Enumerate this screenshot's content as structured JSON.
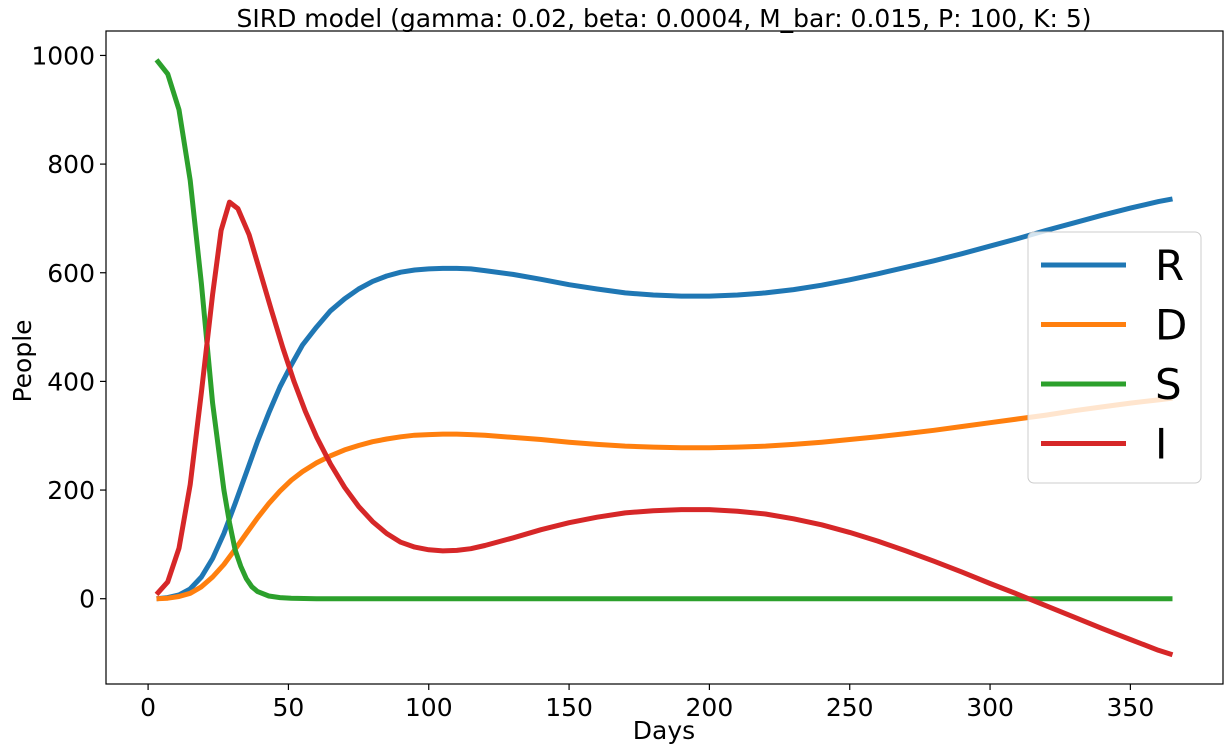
{
  "chart_data": {
    "type": "line",
    "title": "SIRD model (gamma: 0.02, beta: 0.0004, M_bar: 0.015, P: 100, K: 5)",
    "xlabel": "Days",
    "ylabel": "People",
    "xlim": [
      -15,
      383
    ],
    "ylim": [
      -157,
      1045
    ],
    "xticks": [
      0,
      50,
      100,
      150,
      200,
      250,
      300,
      350
    ],
    "yticks": [
      0,
      200,
      400,
      600,
      800,
      1000
    ],
    "grid": false,
    "legend_position": "center-right",
    "series": [
      {
        "name": "R",
        "color": "#1f77b4",
        "points": [
          [
            3,
            0
          ],
          [
            7,
            2
          ],
          [
            11,
            7
          ],
          [
            15,
            18
          ],
          [
            19,
            40
          ],
          [
            23,
            74
          ],
          [
            27,
            120
          ],
          [
            31,
            175
          ],
          [
            35,
            232
          ],
          [
            39,
            290
          ],
          [
            43,
            342
          ],
          [
            47,
            390
          ],
          [
            51,
            430
          ],
          [
            55,
            467
          ],
          [
            60,
            500
          ],
          [
            65,
            530
          ],
          [
            70,
            552
          ],
          [
            75,
            570
          ],
          [
            80,
            584
          ],
          [
            85,
            594
          ],
          [
            90,
            601
          ],
          [
            95,
            605
          ],
          [
            100,
            607
          ],
          [
            105,
            608
          ],
          [
            110,
            608
          ],
          [
            115,
            607
          ],
          [
            120,
            604
          ],
          [
            130,
            597
          ],
          [
            140,
            588
          ],
          [
            150,
            578
          ],
          [
            160,
            570
          ],
          [
            170,
            563
          ],
          [
            180,
            559
          ],
          [
            190,
            557
          ],
          [
            200,
            557
          ],
          [
            210,
            559
          ],
          [
            220,
            563
          ],
          [
            230,
            569
          ],
          [
            240,
            577
          ],
          [
            250,
            587
          ],
          [
            260,
            598
          ],
          [
            270,
            610
          ],
          [
            280,
            622
          ],
          [
            290,
            635
          ],
          [
            300,
            649
          ],
          [
            310,
            663
          ],
          [
            320,
            678
          ],
          [
            330,
            692
          ],
          [
            340,
            706
          ],
          [
            350,
            719
          ],
          [
            360,
            731
          ],
          [
            365,
            736
          ]
        ]
      },
      {
        "name": "D",
        "color": "#ff7f0e",
        "points": [
          [
            3,
            0
          ],
          [
            7,
            1
          ],
          [
            11,
            4
          ],
          [
            15,
            10
          ],
          [
            19,
            22
          ],
          [
            23,
            40
          ],
          [
            27,
            63
          ],
          [
            31,
            91
          ],
          [
            35,
            120
          ],
          [
            39,
            149
          ],
          [
            43,
            175
          ],
          [
            47,
            198
          ],
          [
            51,
            218
          ],
          [
            55,
            234
          ],
          [
            60,
            250
          ],
          [
            65,
            263
          ],
          [
            70,
            274
          ],
          [
            75,
            282
          ],
          [
            80,
            289
          ],
          [
            85,
            294
          ],
          [
            90,
            298
          ],
          [
            95,
            301
          ],
          [
            100,
            302
          ],
          [
            105,
            303
          ],
          [
            110,
            303
          ],
          [
            115,
            302
          ],
          [
            120,
            301
          ],
          [
            130,
            297
          ],
          [
            140,
            293
          ],
          [
            150,
            288
          ],
          [
            160,
            284
          ],
          [
            170,
            281
          ],
          [
            180,
            279
          ],
          [
            190,
            278
          ],
          [
            200,
            278
          ],
          [
            210,
            279
          ],
          [
            220,
            281
          ],
          [
            230,
            284
          ],
          [
            240,
            288
          ],
          [
            250,
            293
          ],
          [
            260,
            298
          ],
          [
            270,
            304
          ],
          [
            280,
            310
          ],
          [
            290,
            317
          ],
          [
            300,
            324
          ],
          [
            310,
            331
          ],
          [
            320,
            338
          ],
          [
            330,
            346
          ],
          [
            340,
            353
          ],
          [
            350,
            360
          ],
          [
            360,
            366
          ],
          [
            365,
            369
          ]
        ]
      },
      {
        "name": "S",
        "color": "#2ca02c",
        "points": [
          [
            3,
            992
          ],
          [
            7,
            966
          ],
          [
            11,
            900
          ],
          [
            15,
            770
          ],
          [
            19,
            580
          ],
          [
            23,
            360
          ],
          [
            27,
            200
          ],
          [
            29,
            140
          ],
          [
            31,
            90
          ],
          [
            33,
            60
          ],
          [
            35,
            37
          ],
          [
            37,
            22
          ],
          [
            39,
            13
          ],
          [
            43,
            5
          ],
          [
            47,
            2
          ],
          [
            51,
            1
          ],
          [
            60,
            0
          ],
          [
            80,
            0
          ],
          [
            100,
            0
          ],
          [
            150,
            0
          ],
          [
            200,
            0
          ],
          [
            250,
            0
          ],
          [
            300,
            0
          ],
          [
            365,
            0
          ]
        ]
      },
      {
        "name": "I",
        "color": "#d62728",
        "points": [
          [
            3,
            8
          ],
          [
            7,
            31
          ],
          [
            11,
            93
          ],
          [
            15,
            210
          ],
          [
            19,
            380
          ],
          [
            23,
            560
          ],
          [
            26,
            678
          ],
          [
            29,
            730
          ],
          [
            32,
            718
          ],
          [
            36,
            670
          ],
          [
            40,
            600
          ],
          [
            44,
            530
          ],
          [
            48,
            462
          ],
          [
            52,
            400
          ],
          [
            56,
            345
          ],
          [
            60,
            298
          ],
          [
            65,
            248
          ],
          [
            70,
            205
          ],
          [
            75,
            170
          ],
          [
            80,
            142
          ],
          [
            85,
            120
          ],
          [
            90,
            104
          ],
          [
            95,
            95
          ],
          [
            100,
            90
          ],
          [
            105,
            88
          ],
          [
            110,
            89
          ],
          [
            115,
            92
          ],
          [
            120,
            98
          ],
          [
            130,
            112
          ],
          [
            140,
            127
          ],
          [
            150,
            140
          ],
          [
            160,
            150
          ],
          [
            170,
            158
          ],
          [
            180,
            162
          ],
          [
            190,
            164
          ],
          [
            200,
            164
          ],
          [
            210,
            161
          ],
          [
            220,
            156
          ],
          [
            230,
            147
          ],
          [
            240,
            136
          ],
          [
            250,
            122
          ],
          [
            260,
            106
          ],
          [
            270,
            88
          ],
          [
            280,
            69
          ],
          [
            290,
            49
          ],
          [
            300,
            28
          ],
          [
            310,
            8
          ],
          [
            320,
            -13
          ],
          [
            330,
            -34
          ],
          [
            340,
            -55
          ],
          [
            350,
            -75
          ],
          [
            360,
            -95
          ],
          [
            365,
            -103
          ]
        ]
      }
    ]
  }
}
